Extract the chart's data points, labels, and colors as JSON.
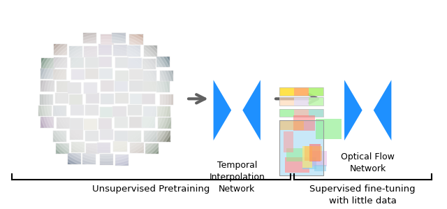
{
  "bg_color": "#ffffff",
  "blue_color": "#1E90FF",
  "arrow_color": "#606060",
  "text_color": "#000000",
  "bracket_color": "#000000",
  "label1": "Temporal\nInterpolation\nNetwork",
  "label2": "Optical Flow\nNetwork",
  "bottom_label1": "Unsupervised Pretraining",
  "bottom_label2": "Supervised fine-tuning\nwith little data",
  "figsize": [
    6.4,
    2.99
  ],
  "dpi": 100
}
